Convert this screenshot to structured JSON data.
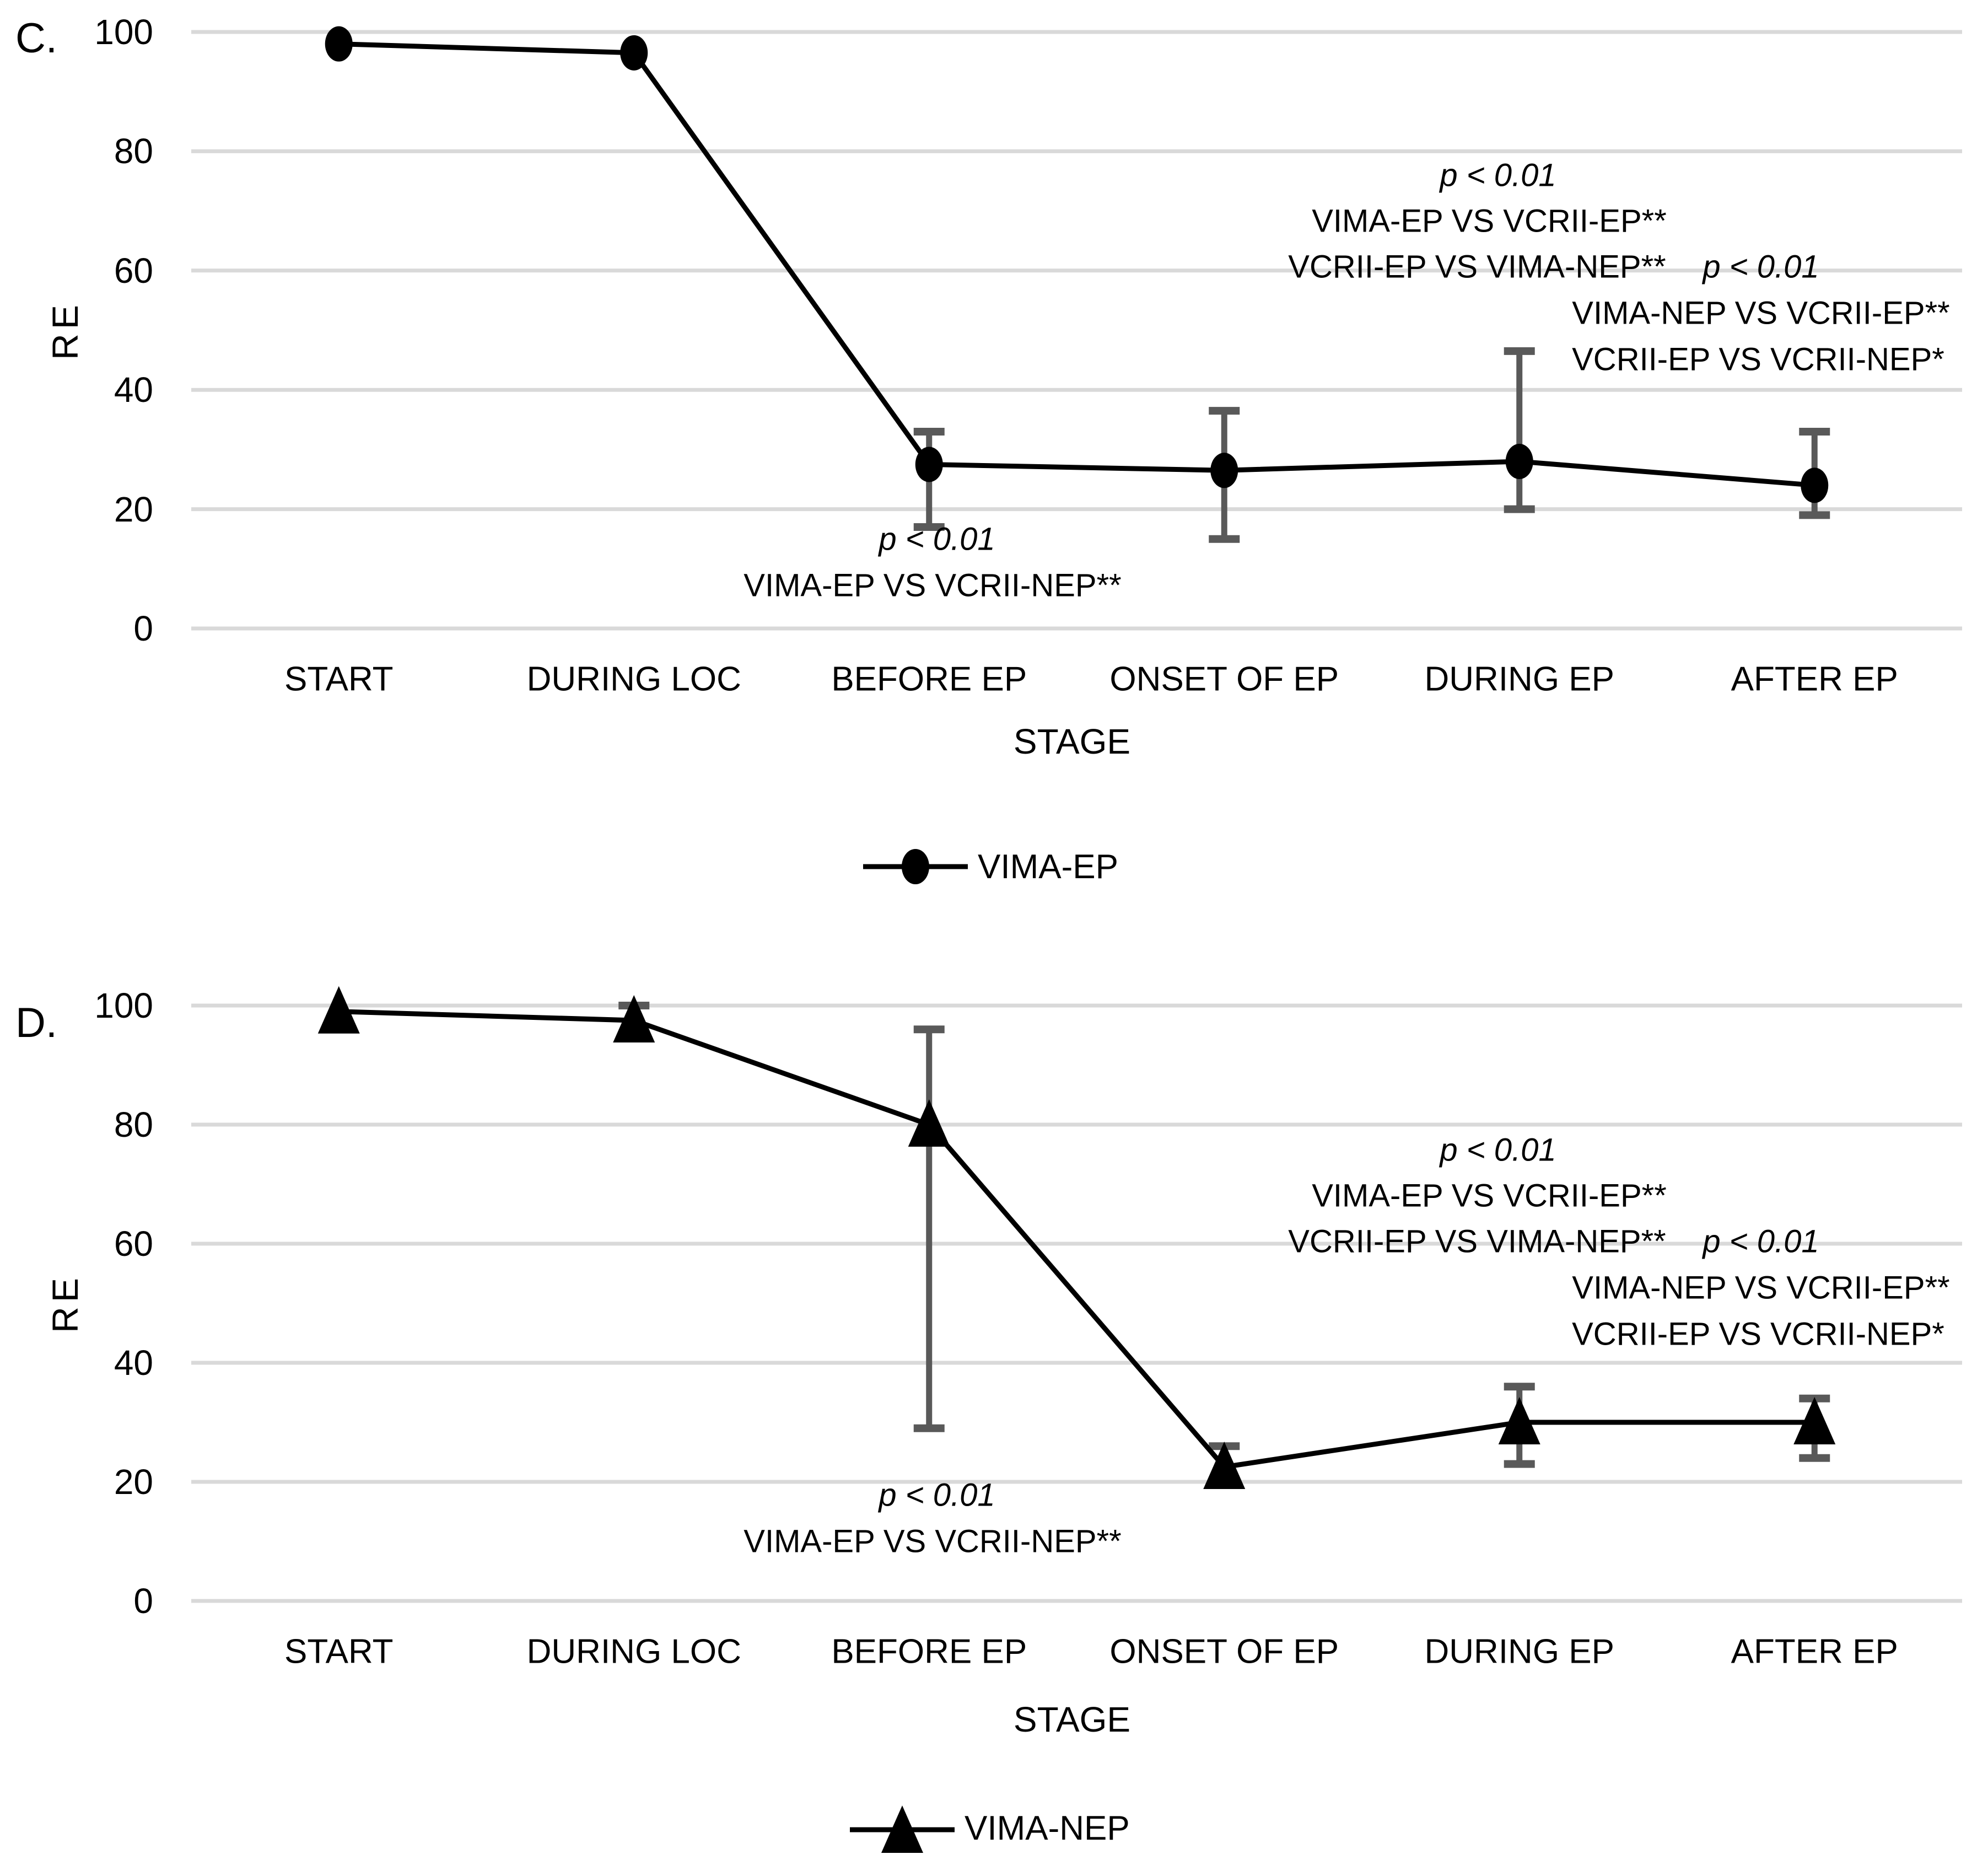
{
  "figure": {
    "description_labels": [
      "C.",
      "D."
    ]
  },
  "colors": {
    "grid": "#d9d9d9",
    "error_bar": "#595959",
    "series": "#000000",
    "text": "#000000"
  },
  "chart_data": [
    {
      "type": "line",
      "panel_label": "C.",
      "ylabel": "RE",
      "xlabel": "STAGE",
      "ylim": [
        0,
        100
      ],
      "yticks": [
        0,
        20,
        40,
        60,
        80,
        100
      ],
      "grid": true,
      "legend_position": "bottom",
      "categories": [
        "START",
        "DURING LOC",
        "BEFORE EP",
        "ONSET OF EP",
        "DURING EP",
        "AFTER EP"
      ],
      "series": [
        {
          "name": "VIMA-EP",
          "marker": "circle",
          "color": "#000000",
          "values": [
            98,
            96.5,
            27.5,
            26.5,
            28,
            24
          ],
          "error_low": [
            null,
            null,
            17,
            15,
            20,
            19
          ],
          "error_high": [
            null,
            null,
            33,
            36.5,
            46.5,
            33
          ]
        }
      ],
      "legend": {
        "label": "VIMA-EP"
      },
      "annotations": {
        "mid": [
          "p < 0.01",
          "VIMA-EP VS VCRII-EP**",
          "VCRII-EP VS VIMA-NEP**"
        ],
        "right": [
          "p < 0.01",
          "VIMA-NEP VS VCRII-EP**",
          "VCRII-EP VS VCRII-NEP*"
        ],
        "below": [
          "p < 0.01",
          "VIMA-EP VS VCRII-NEP**"
        ]
      }
    },
    {
      "type": "line",
      "panel_label": "D.",
      "ylabel": "RE",
      "xlabel": "STAGE",
      "ylim": [
        0,
        100
      ],
      "yticks": [
        0,
        20,
        40,
        60,
        80,
        100
      ],
      "grid": true,
      "legend_position": "bottom",
      "categories": [
        "START",
        "DURING LOC",
        "BEFORE EP",
        "ONSET OF EP",
        "DURING EP",
        "AFTER EP"
      ],
      "series": [
        {
          "name": "VIMA-NEP",
          "marker": "triangle",
          "color": "#000000",
          "values": [
            99,
            97.5,
            80,
            22.5,
            30,
            30
          ],
          "error_low": [
            null,
            95,
            29,
            19.5,
            23,
            24
          ],
          "error_high": [
            null,
            100,
            96,
            26,
            36,
            34
          ]
        }
      ],
      "legend": {
        "label": "VIMA-NEP"
      },
      "annotations": {
        "mid": [
          "p < 0.01",
          "VIMA-EP VS VCRII-EP**",
          "VCRII-EP VS VIMA-NEP**"
        ],
        "right": [
          "p < 0.01",
          "VIMA-NEP VS VCRII-EP**",
          "VCRII-EP VS VCRII-NEP*"
        ],
        "below": [
          "p < 0.01",
          "VIMA-EP VS VCRII-NEP**"
        ]
      }
    }
  ]
}
